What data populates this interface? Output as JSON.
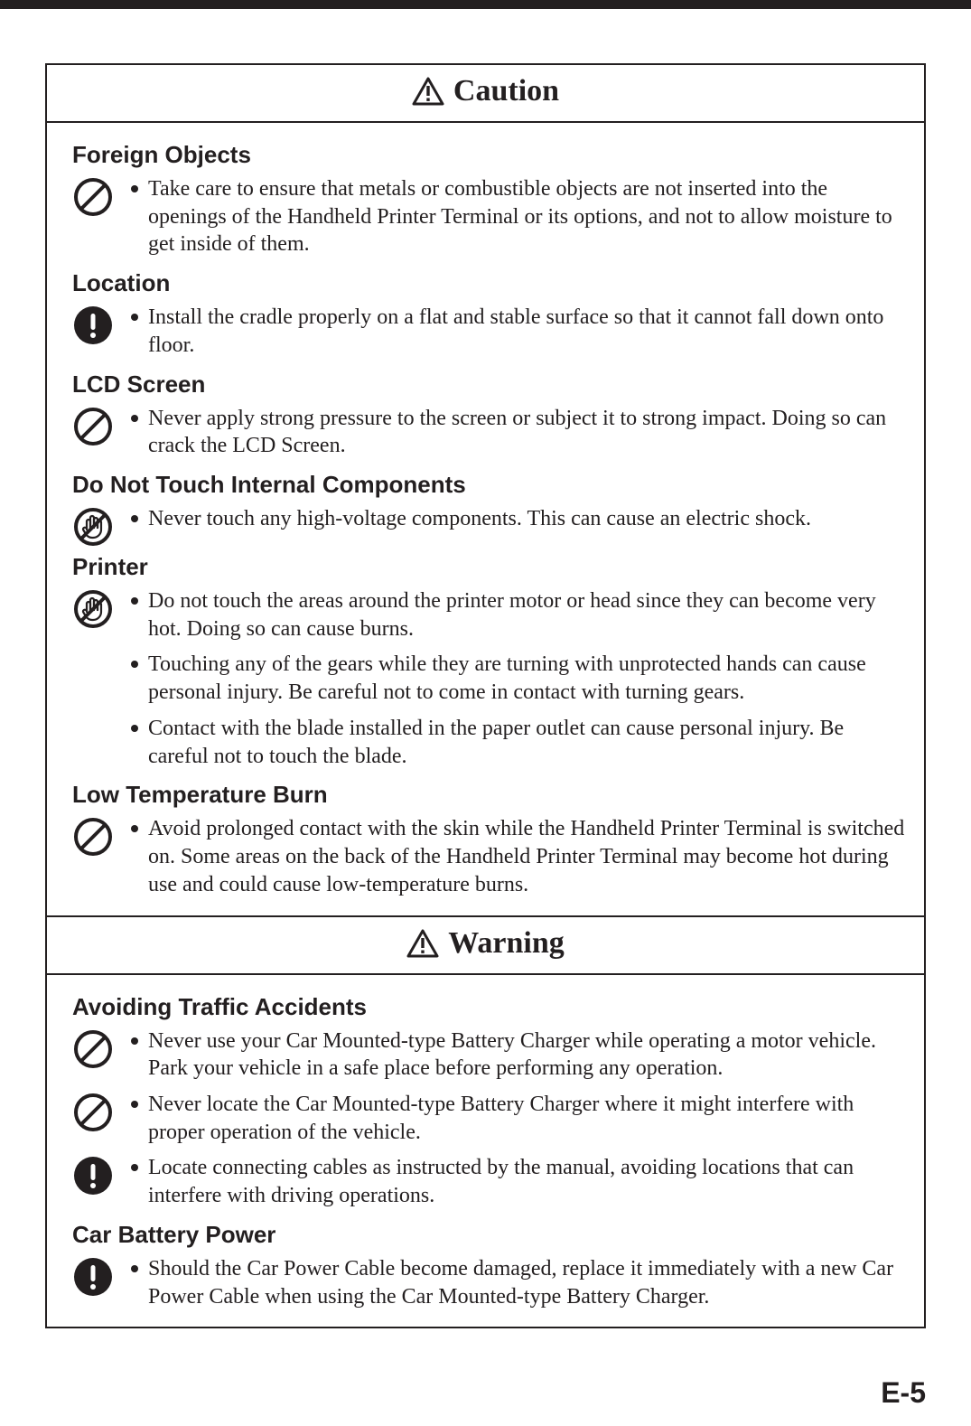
{
  "page_number": "E-5",
  "colors": {
    "text": "#231f20",
    "background": "#ffffff"
  },
  "caution": {
    "title": "Caution",
    "sections": [
      {
        "heading": "Foreign Objects",
        "items": [
          {
            "icon": "prohibit",
            "text": "Take care to ensure that metals or combustible objects are not inserted into the openings of the Handheld Printer Terminal or its options, and not to allow moisture to get inside of them."
          }
        ]
      },
      {
        "heading": "Location",
        "items": [
          {
            "icon": "mandatory",
            "text": "Install the cradle properly on a flat and stable surface so that it cannot fall down onto floor."
          }
        ]
      },
      {
        "heading": "LCD Screen",
        "items": [
          {
            "icon": "prohibit",
            "text": "Never apply strong pressure to the screen or subject it to strong impact. Doing so can crack the LCD Screen."
          }
        ]
      },
      {
        "heading": "Do Not Touch Internal Components",
        "items": [
          {
            "icon": "no-touch",
            "text": "Never touch any high-voltage components.  This can cause an electric shock."
          }
        ]
      },
      {
        "heading": "Printer",
        "items": [
          {
            "icon": "no-touch",
            "text": "Do not touch the areas around the printer motor or head since they can become very hot.  Doing so can cause burns."
          },
          {
            "icon": "",
            "text": "Touching any of the gears while they are turning with unprotected hands can cause personal injury.  Be careful not to come in contact with turning gears."
          },
          {
            "icon": "",
            "text": "Contact with the blade installed in the paper outlet can cause personal injury.  Be careful not to touch the blade."
          }
        ]
      },
      {
        "heading": "Low Temperature Burn",
        "items": [
          {
            "icon": "prohibit",
            "text": "Avoid prolonged contact with the skin while the Handheld Printer Terminal is switched on. Some areas on the back of the Handheld Printer Terminal may become hot during use and could cause low-temperature burns."
          }
        ]
      }
    ]
  },
  "warning": {
    "title": "Warning",
    "sections": [
      {
        "heading": "Avoiding Traffic Accidents",
        "items": [
          {
            "icon": "prohibit",
            "text": "Never use your Car Mounted-type Battery Charger while operating a motor vehicle. Park your vehicle in a safe place before performing any operation."
          },
          {
            "icon": "prohibit",
            "text": "Never locate the Car Mounted-type Battery Charger where it might interfere with proper operation of the vehicle."
          },
          {
            "icon": "mandatory",
            "text": "Locate connecting cables as instructed by the manual, avoiding locations that can interfere with driving operations."
          }
        ]
      },
      {
        "heading": "Car Battery Power",
        "items": [
          {
            "icon": "mandatory",
            "text": "Should the Car Power Cable become damaged, replace it immediately with a new Car Power Cable when using the Car Mounted-type Battery Charger."
          }
        ]
      }
    ]
  }
}
